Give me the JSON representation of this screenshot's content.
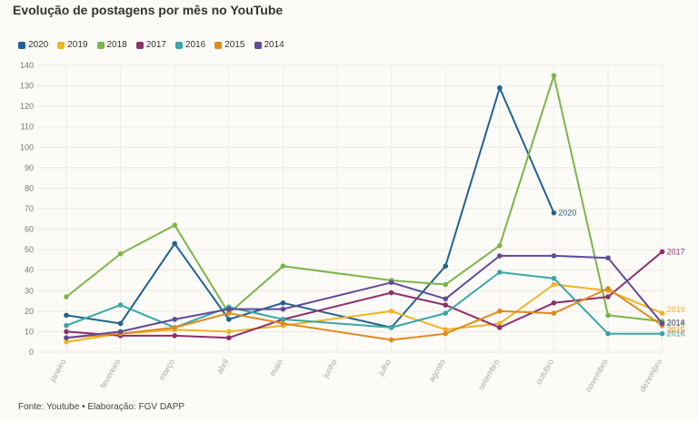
{
  "header": {
    "title": "Evolução de postagens por mês no YouTube"
  },
  "footer": {
    "source": "Fonte: Youtube • Elaboração: FGV DAPP"
  },
  "chart_data": {
    "type": "line",
    "title": "Evolução de postagens por mês no YouTube",
    "categories": [
      "janeiro",
      "fevereiro",
      "março",
      "abril",
      "maio",
      "junho",
      "julho",
      "agosto",
      "setembro",
      "outubro",
      "novembro",
      "dezembro"
    ],
    "ylim": [
      0,
      140
    ],
    "yticks": [
      0,
      10,
      20,
      30,
      40,
      50,
      60,
      70,
      80,
      90,
      100,
      110,
      120,
      130,
      140
    ],
    "grid": true,
    "legend_position": "top-left",
    "series": [
      {
        "name": "2020",
        "color": "#1f6390",
        "values": [
          18,
          14,
          53,
          16,
          24,
          null,
          12,
          42,
          129,
          68,
          null,
          null
        ],
        "end_label": "2020"
      },
      {
        "name": "2019",
        "color": "#f0b324",
        "values": [
          5,
          9,
          11,
          10,
          13,
          null,
          20,
          11,
          14,
          33,
          30,
          19
        ],
        "end_label": "2019"
      },
      {
        "name": "2018",
        "color": "#7ab648",
        "values": [
          27,
          48,
          62,
          19,
          42,
          null,
          35,
          33,
          52,
          135,
          18,
          15
        ],
        "end_label": "2018"
      },
      {
        "name": "2017",
        "color": "#8e2f6b",
        "values": [
          10,
          8,
          8,
          7,
          16,
          null,
          29,
          23,
          12,
          24,
          27,
          49
        ],
        "end_label": "2017"
      },
      {
        "name": "2016",
        "color": "#3aa7a7",
        "values": [
          13,
          23,
          12,
          22,
          16,
          null,
          12,
          19,
          39,
          36,
          9,
          9
        ],
        "end_label": "2016"
      },
      {
        "name": "2015",
        "color": "#e08a1e",
        "values": [
          7,
          9,
          12,
          19,
          14,
          null,
          6,
          9,
          20,
          19,
          31,
          13
        ],
        "end_label": "2015"
      },
      {
        "name": "2014",
        "color": "#5e4b9b",
        "values": [
          7,
          10,
          16,
          21,
          21,
          null,
          34,
          26,
          47,
          47,
          46,
          14
        ],
        "end_label": "2014"
      }
    ]
  }
}
